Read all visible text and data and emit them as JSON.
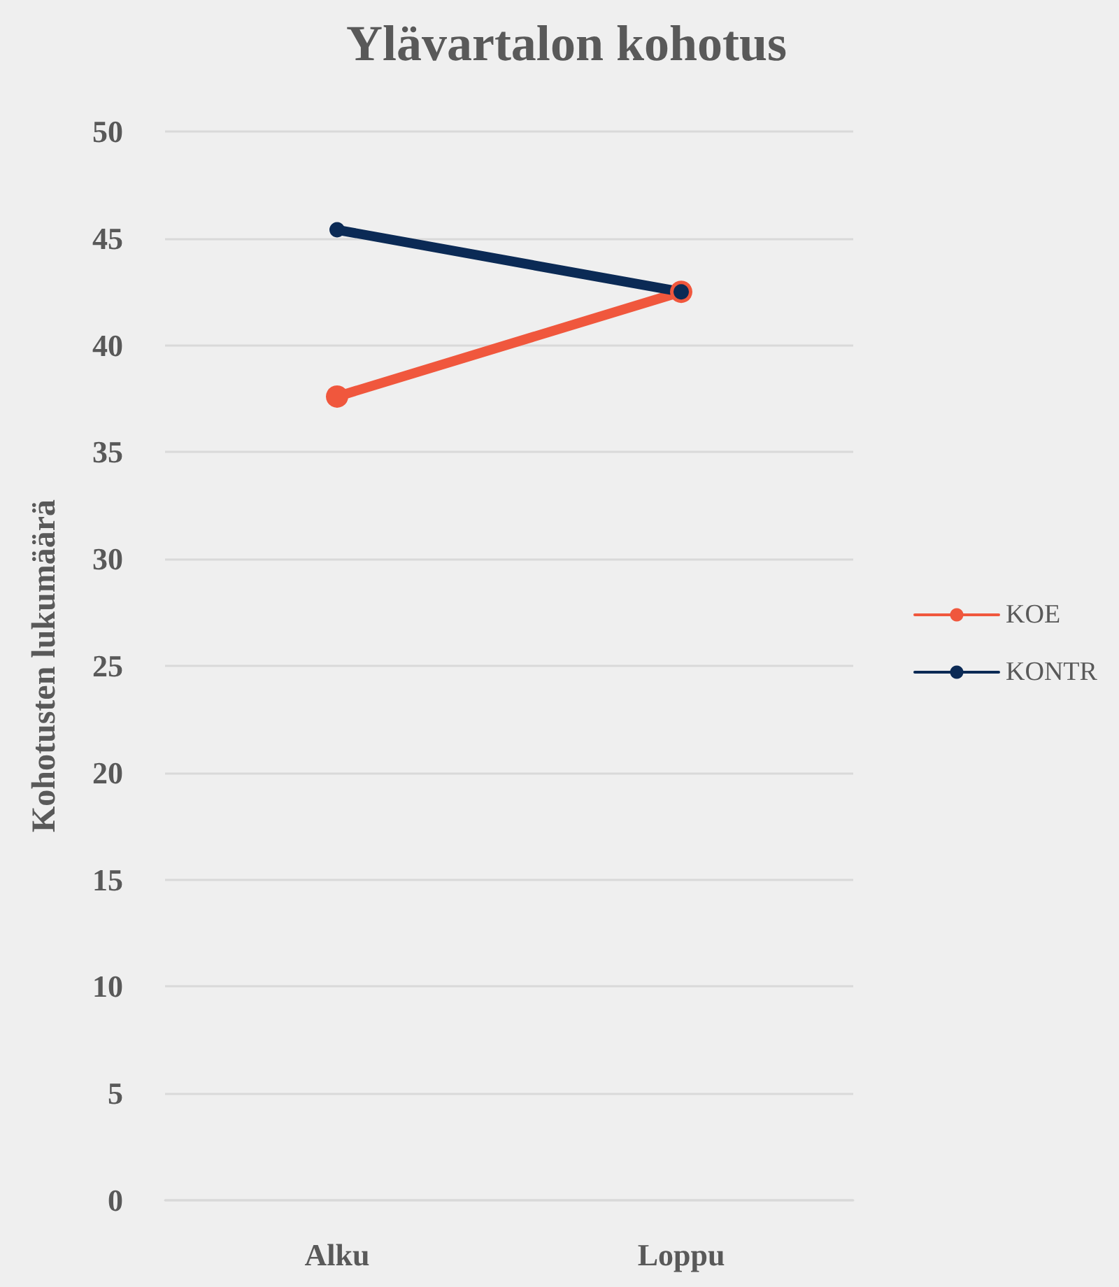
{
  "chart_data": {
    "type": "line",
    "title": "Ylävartalon kohotus",
    "ylabel": "Kohotusten lukumäärä",
    "categories": [
      "Alku",
      "Loppu"
    ],
    "series": [
      {
        "name": "KOE",
        "color": "#f0573d",
        "values": [
          37.6,
          42.5
        ]
      },
      {
        "name": "KONTR",
        "color": "#0b2a55",
        "values": [
          45.4,
          42.5
        ]
      }
    ],
    "ylim": [
      0,
      50
    ],
    "yticks": [
      0,
      5,
      10,
      15,
      20,
      25,
      30,
      35,
      40,
      45,
      50
    ],
    "grid": "y",
    "legend": "right",
    "marker": "circle",
    "line_style": "solid"
  }
}
